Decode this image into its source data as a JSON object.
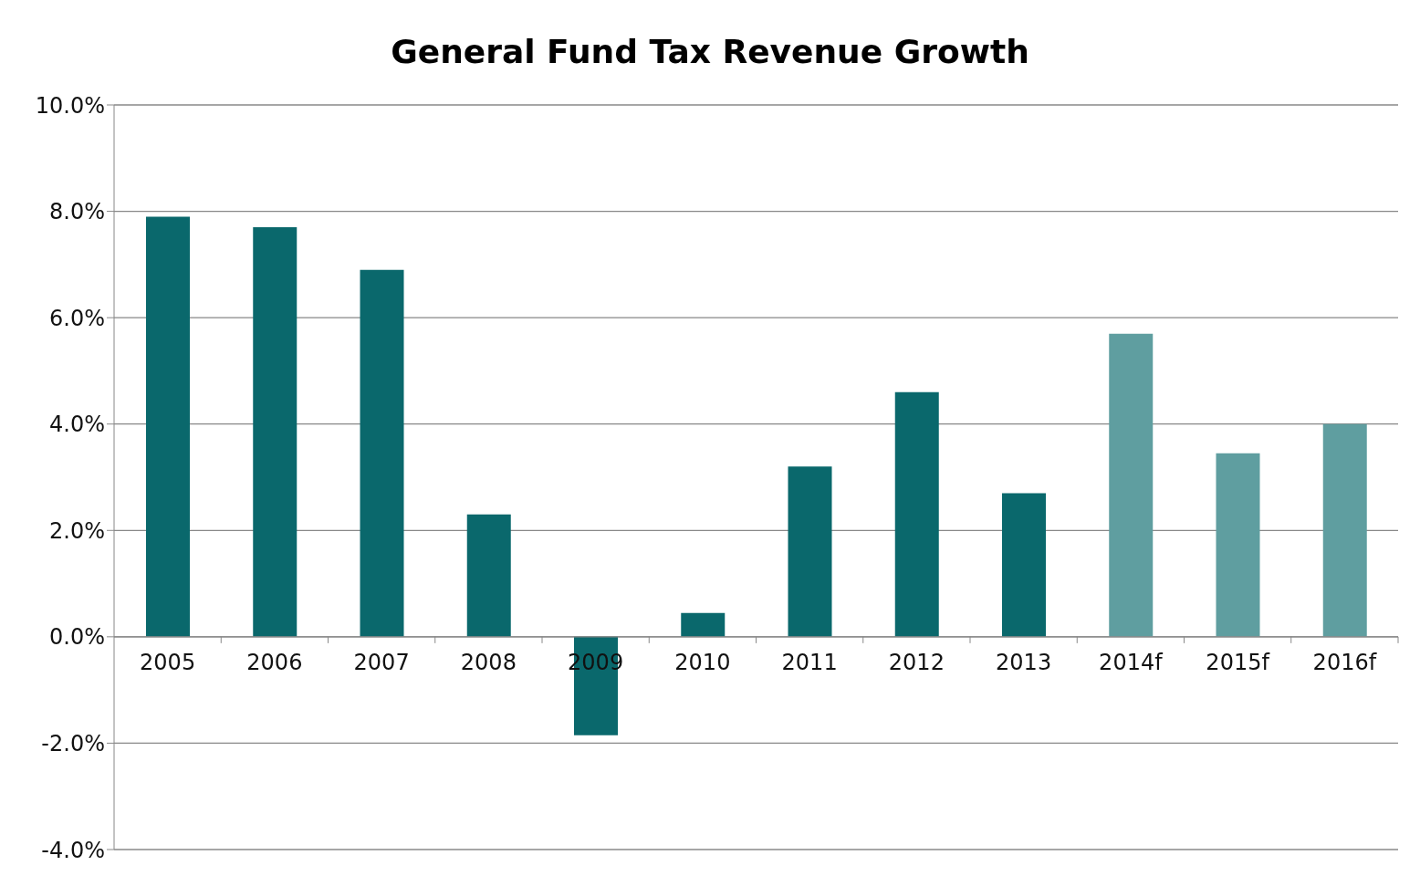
{
  "chart_data": {
    "type": "bar",
    "title": "General Fund Tax Revenue Growth",
    "categories": [
      "2005",
      "2006",
      "2007",
      "2008",
      "2009",
      "2010",
      "2011",
      "2012",
      "2013",
      "2014f",
      "2015f",
      "2016f"
    ],
    "values": [
      7.9,
      7.7,
      6.9,
      2.3,
      -1.85,
      0.45,
      3.2,
      4.6,
      2.7,
      5.7,
      3.45,
      4.0
    ],
    "colors": [
      "#0a686c",
      "#0a686c",
      "#0a686c",
      "#0a686c",
      "#0a686c",
      "#0a686c",
      "#0a686c",
      "#0a686c",
      "#0a686c",
      "#5f9ea0",
      "#5f9ea0",
      "#5f9ea0"
    ],
    "ylim": [
      -4,
      10
    ],
    "yticks": [
      {
        "value": -4,
        "label": "-4.0%"
      },
      {
        "value": -2,
        "label": "-2.0%"
      },
      {
        "value": 0,
        "label": "0.0%"
      },
      {
        "value": 2,
        "label": "2.0%"
      },
      {
        "value": 4,
        "label": "4.0%"
      },
      {
        "value": 6,
        "label": "6.0%"
      },
      {
        "value": 8,
        "label": "8.0%"
      },
      {
        "value": 10,
        "label": "10.0%"
      }
    ],
    "grid": "y"
  }
}
